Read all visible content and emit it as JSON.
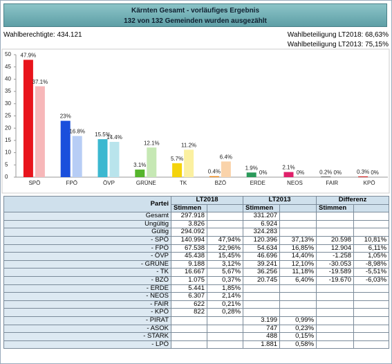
{
  "header": {
    "title_line1": "Kärnten Gesamt -  vorläufiges Ergebnis",
    "title_line2": "132 von 132 Gemeinden wurden ausgezählt",
    "eligible": "Wahlberechtigte:  434.121",
    "turnout_2018": "Wahlbeteiligung LT2018:  68,63%",
    "turnout_2013": "Wahlbeteiligung LT2013:  75,15%"
  },
  "chart_data": {
    "type": "bar",
    "categories": [
      "SPÖ",
      "FPÖ",
      "ÖVP",
      "GRÜNE",
      "TK",
      "BZÖ",
      "ERDE",
      "NEOS",
      "FAIR",
      "KPÖ"
    ],
    "series": [
      {
        "colors": [
          "#e8141c",
          "#1a4fdc",
          "#3bb8d0",
          "#55b52b",
          "#f4d30c",
          "#f08a1c",
          "#2a9a5a",
          "#e0206a",
          "#222222",
          "#d01818"
        ],
        "values": [
          47.9,
          23,
          15.5,
          3.1,
          5.7,
          0.4,
          1.9,
          2.1,
          0.2,
          0.3
        ],
        "value_labels": [
          "47.9%",
          "23%",
          "15.5%",
          "3.1%",
          "5.7%",
          "0.4%",
          "1.9%",
          "2.1%",
          "0.2%",
          "0.3%"
        ]
      },
      {
        "colors": [
          "#f7b7b9",
          "#b7cdf5",
          "#b9e4ec",
          "#c6e8b4",
          "#fbf0a0",
          "#fad3aa",
          "#b5dcc4",
          "#f5b5cc",
          "#bbbbbb",
          "#f2b0b0"
        ],
        "values": [
          37.1,
          16.8,
          14.4,
          12.1,
          11.2,
          6.4,
          0,
          0,
          0,
          0
        ],
        "value_labels": [
          "37.1%",
          "16.8%",
          "14.4%",
          "12.1%",
          "11.2%",
          "6.4%",
          "0%",
          "0%",
          "0%",
          "0%"
        ]
      }
    ],
    "ylim": [
      0,
      50
    ],
    "yticks": [
      0,
      5,
      10,
      15,
      20,
      25,
      30,
      35,
      40,
      45,
      50
    ],
    "grid": false
  },
  "table": {
    "header": [
      "Partei",
      "LT2018",
      "LT2013",
      "Differenz"
    ],
    "subheader": [
      "Stimmen",
      "Stimmen",
      "Stimmen"
    ],
    "rows": [
      [
        "Gesamt",
        "297.918",
        null,
        "331.207",
        null,
        null,
        null
      ],
      [
        "Ungültig",
        "3.826",
        null,
        "6.924",
        null,
        null,
        null
      ],
      [
        "Gültig",
        "294.092",
        null,
        "324.283",
        null,
        null,
        null
      ],
      [
        "- SPÖ",
        "140.994",
        "47,94%",
        "120.396",
        "37,13%",
        "20.598",
        "10,81%"
      ],
      [
        "- FPÖ",
        "67.538",
        "22,96%",
        "54.634",
        "16,85%",
        "12.904",
        "6,11%"
      ],
      [
        "- ÖVP",
        "45.438",
        "15,45%",
        "46.696",
        "14,40%",
        "-1.258",
        "1,05%"
      ],
      [
        "- GRÜNE",
        "9.188",
        "3,12%",
        "39.241",
        "12,10%",
        "-30.053",
        "-8,98%"
      ],
      [
        "- TK",
        "16.667",
        "5,67%",
        "36.256",
        "11,18%",
        "-19.589",
        "-5,51%"
      ],
      [
        "- BZÖ",
        "1.075",
        "0,37%",
        "20.745",
        "6,40%",
        "-19.670",
        "-6,03%"
      ],
      [
        "- ERDE",
        "5.441",
        "1,85%",
        null,
        null,
        null,
        null
      ],
      [
        "- NEOS",
        "6.307",
        "2,14%",
        null,
        null,
        null,
        null
      ],
      [
        "- FAIR",
        "622",
        "0,21%",
        null,
        null,
        null,
        null
      ],
      [
        "- KPÖ",
        "822",
        "0,28%",
        null,
        null,
        null,
        null
      ],
      [
        "- PIRAT",
        null,
        null,
        "3.199",
        "0,99%",
        null,
        null
      ],
      [
        "- ASOK",
        null,
        null,
        "747",
        "0,23%",
        null,
        null
      ],
      [
        "- STARK",
        null,
        null,
        "488",
        "0,15%",
        null,
        null
      ],
      [
        "- LPÖ",
        null,
        null,
        "1.881",
        "0,58%",
        null,
        null
      ]
    ]
  }
}
